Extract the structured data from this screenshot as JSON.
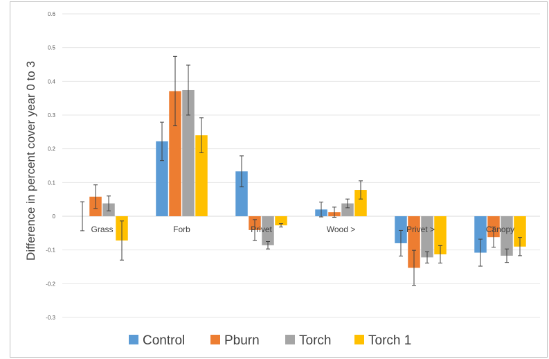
{
  "chart_data": {
    "type": "bar",
    "title": "",
    "xlabel": "",
    "ylabel": "Difference in percent cover year 0 to 3",
    "ylim": [
      -0.3,
      0.6
    ],
    "yticks": [
      "-0.3",
      "-0.2",
      "-0.1",
      "0",
      "0.1",
      "0.2",
      "0.3",
      "0.4",
      "0.5",
      "0.6"
    ],
    "categories": [
      "Grass",
      "Forb",
      "Privet",
      "Wood >",
      "Privet >",
      "Canopy"
    ],
    "grid": true,
    "legend_position": "bottom",
    "series": [
      {
        "name": "Control",
        "color": "#5B9BD5",
        "values": [
          0.0,
          0.222,
          0.133,
          0.02,
          -0.08,
          -0.108
        ],
        "errors": [
          0.043,
          0.057,
          0.046,
          0.022,
          0.038,
          0.04
        ]
      },
      {
        "name": "Pburn",
        "color": "#ED7D31",
        "values": [
          0.058,
          0.371,
          -0.041,
          0.012,
          -0.153,
          -0.062
        ],
        "errors": [
          0.035,
          0.103,
          0.031,
          0.015,
          0.052,
          0.03
        ]
      },
      {
        "name": "Torch",
        "color": "#A5A5A5",
        "values": [
          0.038,
          0.374,
          -0.086,
          0.038,
          -0.122,
          -0.117
        ],
        "errors": [
          0.022,
          0.074,
          0.011,
          0.013,
          0.017,
          0.02
        ]
      },
      {
        "name": "Torch 1",
        "color": "#FFC000",
        "values": [
          -0.072,
          0.24,
          -0.027,
          0.078,
          -0.113,
          -0.09
        ],
        "errors": [
          0.058,
          0.052,
          0.005,
          0.027,
          0.026,
          0.027
        ]
      }
    ]
  }
}
